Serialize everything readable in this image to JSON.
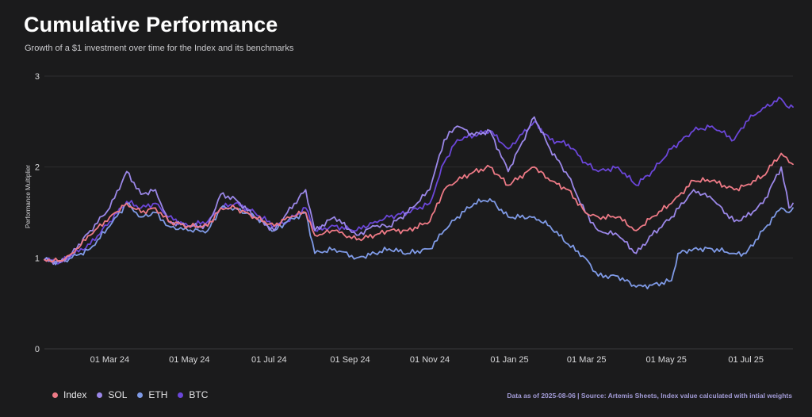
{
  "header": {
    "title": "Cumulative Performance",
    "subtitle": "Growth of a $1 investment over time for the Index and its benchmarks"
  },
  "footer": {
    "source": "Data as of 2025-08-06 | Source: Artemis Sheets, Index value calculated with intial weights"
  },
  "chart_data": {
    "type": "line",
    "ylabel": "Performance Multiplier",
    "ylim": [
      0,
      3
    ],
    "yticks": [
      "0",
      "1",
      "2",
      "3"
    ],
    "xlim": [
      "2024-01-11",
      "2025-08-06"
    ],
    "xticks": [
      {
        "date": "2024-03-01",
        "label": "01 Mar 24"
      },
      {
        "date": "2024-05-01",
        "label": "01 May 24"
      },
      {
        "date": "2024-07-01",
        "label": "01 Jul 24"
      },
      {
        "date": "2024-09-01",
        "label": "01 Sep 24"
      },
      {
        "date": "2024-11-01",
        "label": "01 Nov 24"
      },
      {
        "date": "2025-01-01",
        "label": "01 Jan 25"
      },
      {
        "date": "2025-03-01",
        "label": "01 Mar 25"
      },
      {
        "date": "2025-05-01",
        "label": "01 May 25"
      },
      {
        "date": "2025-07-01",
        "label": "01 Jul 25"
      }
    ],
    "grid": true,
    "legend_position": "bottom-left",
    "series": [
      {
        "name": "BTC",
        "color": "#6b46d9",
        "points": [
          [
            "2024-01-11",
            0.98
          ],
          [
            "2024-01-23",
            0.95
          ],
          [
            "2024-02-01",
            1.03
          ],
          [
            "2024-02-15",
            1.15
          ],
          [
            "2024-03-01",
            1.4
          ],
          [
            "2024-03-14",
            1.62
          ],
          [
            "2024-03-25",
            1.55
          ],
          [
            "2024-04-05",
            1.6
          ],
          [
            "2024-04-15",
            1.45
          ],
          [
            "2024-04-30",
            1.35
          ],
          [
            "2024-05-15",
            1.4
          ],
          [
            "2024-05-25",
            1.55
          ],
          [
            "2024-06-05",
            1.6
          ],
          [
            "2024-06-20",
            1.5
          ],
          [
            "2024-07-05",
            1.35
          ],
          [
            "2024-07-15",
            1.4
          ],
          [
            "2024-07-29",
            1.55
          ],
          [
            "2024-08-05",
            1.3
          ],
          [
            "2024-08-20",
            1.35
          ],
          [
            "2024-09-06",
            1.3
          ],
          [
            "2024-09-20",
            1.4
          ],
          [
            "2024-10-01",
            1.45
          ],
          [
            "2024-10-15",
            1.5
          ],
          [
            "2024-11-01",
            1.6
          ],
          [
            "2024-11-12",
            2.05
          ],
          [
            "2024-11-22",
            2.3
          ],
          [
            "2024-12-05",
            2.35
          ],
          [
            "2024-12-17",
            2.4
          ],
          [
            "2024-12-31",
            2.2
          ],
          [
            "2025-01-20",
            2.5
          ],
          [
            "2025-02-01",
            2.3
          ],
          [
            "2025-02-15",
            2.25
          ],
          [
            "2025-02-28",
            2.05
          ],
          [
            "2025-03-10",
            1.95
          ],
          [
            "2025-03-25",
            2.0
          ],
          [
            "2025-04-08",
            1.8
          ],
          [
            "2025-04-20",
            1.95
          ],
          [
            "2025-05-05",
            2.2
          ],
          [
            "2025-05-22",
            2.4
          ],
          [
            "2025-06-05",
            2.45
          ],
          [
            "2025-06-22",
            2.3
          ],
          [
            "2025-07-01",
            2.5
          ],
          [
            "2025-07-14",
            2.65
          ],
          [
            "2025-07-28",
            2.75
          ],
          [
            "2025-08-03",
            2.65
          ],
          [
            "2025-08-06",
            2.66
          ]
        ]
      },
      {
        "name": "ETH",
        "color": "#7f9ae6",
        "points": [
          [
            "2024-01-11",
            0.98
          ],
          [
            "2024-01-23",
            0.95
          ],
          [
            "2024-02-01",
            1.0
          ],
          [
            "2024-02-15",
            1.1
          ],
          [
            "2024-03-01",
            1.35
          ],
          [
            "2024-03-14",
            1.6
          ],
          [
            "2024-03-25",
            1.45
          ],
          [
            "2024-04-05",
            1.5
          ],
          [
            "2024-04-15",
            1.35
          ],
          [
            "2024-04-30",
            1.3
          ],
          [
            "2024-05-15",
            1.3
          ],
          [
            "2024-05-25",
            1.55
          ],
          [
            "2024-06-05",
            1.55
          ],
          [
            "2024-06-20",
            1.45
          ],
          [
            "2024-07-05",
            1.3
          ],
          [
            "2024-07-15",
            1.4
          ],
          [
            "2024-07-29",
            1.5
          ],
          [
            "2024-08-05",
            1.05
          ],
          [
            "2024-08-20",
            1.1
          ],
          [
            "2024-09-06",
            1.0
          ],
          [
            "2024-09-20",
            1.05
          ],
          [
            "2024-10-01",
            1.1
          ],
          [
            "2024-10-15",
            1.05
          ],
          [
            "2024-11-01",
            1.1
          ],
          [
            "2024-11-12",
            1.3
          ],
          [
            "2024-11-22",
            1.45
          ],
          [
            "2024-12-05",
            1.6
          ],
          [
            "2024-12-17",
            1.65
          ],
          [
            "2024-12-31",
            1.45
          ],
          [
            "2025-01-20",
            1.45
          ],
          [
            "2025-02-01",
            1.35
          ],
          [
            "2025-02-15",
            1.15
          ],
          [
            "2025-02-28",
            1.0
          ],
          [
            "2025-03-10",
            0.8
          ],
          [
            "2025-03-25",
            0.8
          ],
          [
            "2025-04-08",
            0.68
          ],
          [
            "2025-04-20",
            0.7
          ],
          [
            "2025-05-05",
            0.75
          ],
          [
            "2025-05-10",
            1.05
          ],
          [
            "2025-05-22",
            1.1
          ],
          [
            "2025-06-05",
            1.1
          ],
          [
            "2025-06-22",
            1.05
          ],
          [
            "2025-07-01",
            1.05
          ],
          [
            "2025-07-14",
            1.3
          ],
          [
            "2025-07-28",
            1.55
          ],
          [
            "2025-08-03",
            1.5
          ],
          [
            "2025-08-06",
            1.55
          ]
        ]
      },
      {
        "name": "SOL",
        "color": "#9b87e8",
        "points": [
          [
            "2024-01-11",
            0.98
          ],
          [
            "2024-01-23",
            0.95
          ],
          [
            "2024-02-01",
            1.05
          ],
          [
            "2024-02-15",
            1.3
          ],
          [
            "2024-03-01",
            1.55
          ],
          [
            "2024-03-14",
            1.95
          ],
          [
            "2024-03-25",
            1.7
          ],
          [
            "2024-04-05",
            1.75
          ],
          [
            "2024-04-15",
            1.4
          ],
          [
            "2024-04-30",
            1.35
          ],
          [
            "2024-05-15",
            1.35
          ],
          [
            "2024-05-25",
            1.7
          ],
          [
            "2024-06-05",
            1.65
          ],
          [
            "2024-06-20",
            1.45
          ],
          [
            "2024-07-05",
            1.3
          ],
          [
            "2024-07-15",
            1.5
          ],
          [
            "2024-07-29",
            1.75
          ],
          [
            "2024-08-05",
            1.3
          ],
          [
            "2024-08-20",
            1.45
          ],
          [
            "2024-09-06",
            1.25
          ],
          [
            "2024-09-20",
            1.35
          ],
          [
            "2024-10-01",
            1.35
          ],
          [
            "2024-10-15",
            1.5
          ],
          [
            "2024-11-01",
            1.75
          ],
          [
            "2024-11-12",
            2.3
          ],
          [
            "2024-11-22",
            2.45
          ],
          [
            "2024-12-05",
            2.35
          ],
          [
            "2024-12-17",
            2.4
          ],
          [
            "2024-12-31",
            1.95
          ],
          [
            "2025-01-20",
            2.55
          ],
          [
            "2025-02-01",
            2.2
          ],
          [
            "2025-02-15",
            1.9
          ],
          [
            "2025-02-28",
            1.5
          ],
          [
            "2025-03-10",
            1.3
          ],
          [
            "2025-03-25",
            1.25
          ],
          [
            "2025-04-08",
            1.05
          ],
          [
            "2025-04-20",
            1.25
          ],
          [
            "2025-05-05",
            1.45
          ],
          [
            "2025-05-22",
            1.75
          ],
          [
            "2025-06-05",
            1.65
          ],
          [
            "2025-06-22",
            1.4
          ],
          [
            "2025-07-01",
            1.45
          ],
          [
            "2025-07-14",
            1.6
          ],
          [
            "2025-07-28",
            2.0
          ],
          [
            "2025-08-03",
            1.55
          ],
          [
            "2025-08-06",
            1.6
          ]
        ]
      },
      {
        "name": "Index",
        "color": "#ee7a86",
        "points": [
          [
            "2024-01-11",
            0.98
          ],
          [
            "2024-01-23",
            0.97
          ],
          [
            "2024-02-01",
            1.05
          ],
          [
            "2024-02-15",
            1.25
          ],
          [
            "2024-03-01",
            1.45
          ],
          [
            "2024-03-14",
            1.6
          ],
          [
            "2024-03-25",
            1.5
          ],
          [
            "2024-04-05",
            1.55
          ],
          [
            "2024-04-15",
            1.4
          ],
          [
            "2024-04-30",
            1.35
          ],
          [
            "2024-05-15",
            1.35
          ],
          [
            "2024-05-25",
            1.55
          ],
          [
            "2024-06-05",
            1.55
          ],
          [
            "2024-06-20",
            1.45
          ],
          [
            "2024-07-05",
            1.35
          ],
          [
            "2024-07-15",
            1.45
          ],
          [
            "2024-07-29",
            1.5
          ],
          [
            "2024-08-05",
            1.25
          ],
          [
            "2024-08-20",
            1.3
          ],
          [
            "2024-09-06",
            1.2
          ],
          [
            "2024-09-20",
            1.25
          ],
          [
            "2024-10-01",
            1.3
          ],
          [
            "2024-10-15",
            1.3
          ],
          [
            "2024-11-01",
            1.4
          ],
          [
            "2024-11-12",
            1.75
          ],
          [
            "2024-11-22",
            1.85
          ],
          [
            "2024-12-05",
            1.95
          ],
          [
            "2024-12-17",
            2.0
          ],
          [
            "2024-12-31",
            1.8
          ],
          [
            "2025-01-20",
            2.0
          ],
          [
            "2025-02-01",
            1.85
          ],
          [
            "2025-02-15",
            1.75
          ],
          [
            "2025-02-28",
            1.5
          ],
          [
            "2025-03-10",
            1.45
          ],
          [
            "2025-03-25",
            1.45
          ],
          [
            "2025-04-08",
            1.3
          ],
          [
            "2025-04-20",
            1.45
          ],
          [
            "2025-05-05",
            1.6
          ],
          [
            "2025-05-22",
            1.85
          ],
          [
            "2025-06-05",
            1.85
          ],
          [
            "2025-06-22",
            1.75
          ],
          [
            "2025-07-01",
            1.8
          ],
          [
            "2025-07-14",
            1.9
          ],
          [
            "2025-07-28",
            2.15
          ],
          [
            "2025-08-03",
            2.05
          ],
          [
            "2025-08-06",
            2.03
          ]
        ]
      }
    ],
    "legend": [
      "Index",
      "SOL",
      "ETH",
      "BTC"
    ]
  }
}
